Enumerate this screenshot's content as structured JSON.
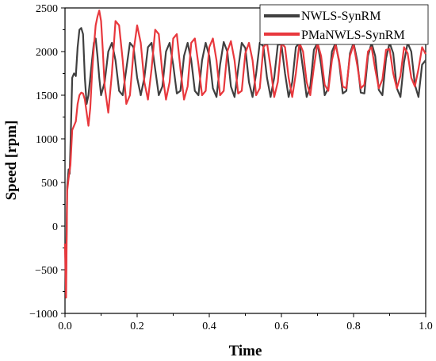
{
  "chart_data": {
    "type": "line",
    "title": "",
    "xlabel": "Time",
    "ylabel": "Speed [rpm]",
    "xlim": [
      0.0,
      1.0
    ],
    "ylim": [
      -1000,
      2500
    ],
    "xticks": [
      0.0,
      0.2,
      0.4,
      0.6,
      0.8,
      1.0
    ],
    "xtick_labels": [
      "0.0",
      "0.2",
      "0.4",
      "0.6",
      "0.8",
      "1.0"
    ],
    "yticks": [
      -1000,
      -500,
      0,
      500,
      1000,
      1500,
      2000,
      2500
    ],
    "ytick_labels": [
      "−1000",
      "−500",
      "0",
      "500",
      "1000",
      "1500",
      "2000",
      "2500"
    ],
    "grid": false,
    "legend_position": "top-right",
    "series": [
      {
        "name": "NWLS-SynRM",
        "color": "#404040",
        "x": [
          0.0,
          0.003,
          0.006,
          0.01,
          0.013,
          0.016,
          0.02,
          0.025,
          0.03,
          0.035,
          0.04,
          0.045,
          0.05,
          0.055,
          0.06,
          0.065,
          0.07,
          0.075,
          0.08,
          0.085,
          0.09,
          0.095,
          0.1,
          0.11,
          0.12,
          0.13,
          0.14,
          0.15,
          0.16,
          0.17,
          0.18,
          0.19,
          0.2,
          0.21,
          0.22,
          0.23,
          0.24,
          0.25,
          0.26,
          0.27,
          0.28,
          0.29,
          0.3,
          0.31,
          0.32,
          0.33,
          0.34,
          0.35,
          0.36,
          0.37,
          0.38,
          0.39,
          0.4,
          0.41,
          0.42,
          0.43,
          0.44,
          0.45,
          0.46,
          0.47,
          0.48,
          0.49,
          0.5,
          0.51,
          0.52,
          0.53,
          0.54,
          0.55,
          0.56,
          0.57,
          0.58,
          0.59,
          0.6,
          0.61,
          0.62,
          0.63,
          0.64,
          0.65,
          0.66,
          0.67,
          0.68,
          0.69,
          0.7,
          0.71,
          0.72,
          0.73,
          0.74,
          0.75,
          0.76,
          0.77,
          0.78,
          0.79,
          0.8,
          0.81,
          0.82,
          0.83,
          0.84,
          0.85,
          0.86,
          0.87,
          0.88,
          0.89,
          0.9,
          0.91,
          0.92,
          0.93,
          0.94,
          0.95,
          0.96,
          0.97,
          0.98,
          0.99,
          1.0
        ],
        "y": [
          -200,
          -600,
          450,
          650,
          600,
          1050,
          1700,
          1750,
          1720,
          2050,
          2250,
          2270,
          2200,
          1700,
          1400,
          1500,
          1700,
          1900,
          2100,
          2150,
          1950,
          1700,
          1500,
          1650,
          2000,
          2100,
          1900,
          1550,
          1500,
          1800,
          2100,
          2050,
          1700,
          1500,
          1700,
          2050,
          2100,
          1800,
          1500,
          1600,
          2000,
          2100,
          1850,
          1520,
          1550,
          1950,
          2100,
          1900,
          1550,
          1500,
          1900,
          2100,
          1950,
          1580,
          1480,
          1850,
          2110,
          2000,
          1600,
          1480,
          1800,
          2100,
          2040,
          1650,
          1480,
          1750,
          2100,
          2060,
          1700,
          1480,
          1700,
          2080,
          2080,
          1750,
          1480,
          1650,
          2050,
          2100,
          1800,
          1480,
          1600,
          2020,
          2100,
          1850,
          1500,
          1580,
          2000,
          2100,
          1880,
          1520,
          1550,
          1980,
          2100,
          1900,
          1530,
          1520,
          1950,
          2100,
          1950,
          1560,
          1500,
          1920,
          2100,
          1980,
          1580,
          1480,
          1880,
          2100,
          2000,
          1620,
          1480,
          1850,
          1900
        ]
      },
      {
        "name": "PMaNWLS-SynRM",
        "color": "#e8383d",
        "x": [
          0.0,
          0.003,
          0.006,
          0.01,
          0.015,
          0.02,
          0.025,
          0.03,
          0.035,
          0.04,
          0.045,
          0.05,
          0.055,
          0.06,
          0.065,
          0.07,
          0.075,
          0.08,
          0.085,
          0.09,
          0.095,
          0.1,
          0.105,
          0.11,
          0.12,
          0.13,
          0.14,
          0.15,
          0.16,
          0.17,
          0.18,
          0.19,
          0.2,
          0.21,
          0.22,
          0.23,
          0.24,
          0.25,
          0.26,
          0.27,
          0.28,
          0.29,
          0.3,
          0.31,
          0.32,
          0.33,
          0.34,
          0.35,
          0.36,
          0.37,
          0.38,
          0.39,
          0.4,
          0.41,
          0.42,
          0.43,
          0.44,
          0.45,
          0.46,
          0.47,
          0.48,
          0.49,
          0.5,
          0.51,
          0.52,
          0.53,
          0.54,
          0.55,
          0.56,
          0.57,
          0.58,
          0.59,
          0.6,
          0.61,
          0.62,
          0.63,
          0.64,
          0.65,
          0.66,
          0.67,
          0.68,
          0.69,
          0.7,
          0.71,
          0.72,
          0.73,
          0.74,
          0.75,
          0.76,
          0.77,
          0.78,
          0.79,
          0.8,
          0.81,
          0.82,
          0.83,
          0.84,
          0.85,
          0.86,
          0.87,
          0.88,
          0.89,
          0.9,
          0.91,
          0.92,
          0.93,
          0.94,
          0.95,
          0.96,
          0.97,
          0.98,
          0.99,
          1.0
        ],
        "y": [
          -200,
          -820,
          400,
          550,
          700,
          1100,
          1150,
          1200,
          1400,
          1500,
          1530,
          1520,
          1450,
          1300,
          1150,
          1350,
          1750,
          2050,
          2300,
          2400,
          2470,
          2350,
          2000,
          1600,
          1300,
          1750,
          2350,
          2300,
          1900,
          1400,
          1500,
          2000,
          2300,
          2100,
          1650,
          1450,
          1800,
          2250,
          2200,
          1750,
          1450,
          1650,
          2150,
          2200,
          1800,
          1450,
          1600,
          2100,
          2150,
          1850,
          1500,
          1550,
          2050,
          2150,
          1900,
          1500,
          1550,
          2000,
          2120,
          1900,
          1520,
          1550,
          1980,
          2100,
          1900,
          1500,
          1580,
          2050,
          2100,
          1820,
          1480,
          1650,
          2100,
          2050,
          1700,
          1480,
          1750,
          2100,
          2000,
          1650,
          1500,
          1820,
          2100,
          1950,
          1620,
          1550,
          1900,
          2080,
          1900,
          1600,
          1580,
          1950,
          2080,
          1850,
          1580,
          1620,
          2000,
          2050,
          1800,
          1580,
          1680,
          2020,
          2030,
          1750,
          1580,
          1720,
          2050,
          1980,
          1700,
          1600,
          1800,
          2050,
          1970
        ]
      }
    ]
  }
}
